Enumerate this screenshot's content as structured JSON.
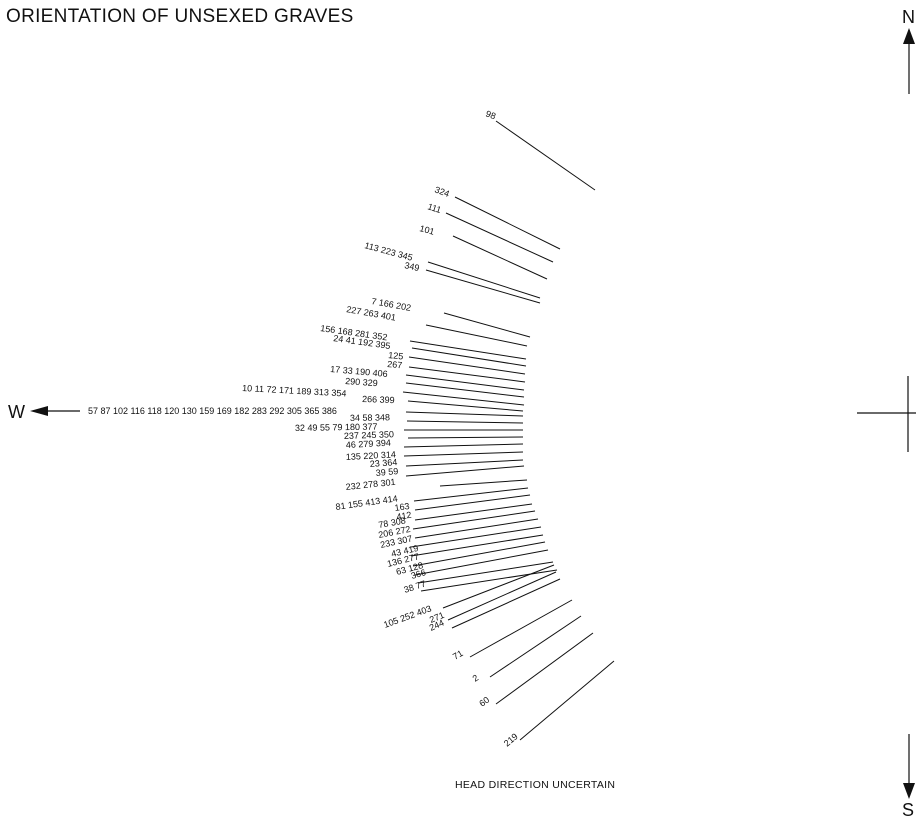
{
  "title": "ORIENTATION OF UNSEXED GRAVES",
  "caption": "HEAD DIRECTION UNCERTAIN",
  "compass": {
    "north": "N",
    "south": "S",
    "west": "W"
  },
  "graves": [
    {
      "label": "98"
    },
    {
      "label": "324"
    },
    {
      "label": "111"
    },
    {
      "label": "101"
    },
    {
      "label": "113 223 345"
    },
    {
      "label": "349"
    },
    {
      "label": "7 166 202"
    },
    {
      "label": "227 263 401"
    },
    {
      "label": "156 168 281 352"
    },
    {
      "label": "24 41 192 395"
    },
    {
      "label": "125"
    },
    {
      "label": "267"
    },
    {
      "label": "17 33 190 406"
    },
    {
      "label": "290 329"
    },
    {
      "label": "10 11 72 171 189 313 354"
    },
    {
      "label": "266 399"
    },
    {
      "label": "57 87 102 116 118 120 130 159 169 182 283 292 305 365 386"
    },
    {
      "label": "34 58 348"
    },
    {
      "label": "32 49 55 79 180 377"
    },
    {
      "label": "237 245 350"
    },
    {
      "label": "46 279 394"
    },
    {
      "label": "135 220 314"
    },
    {
      "label": "23 364"
    },
    {
      "label": "39 59"
    },
    {
      "label": "232 278 301"
    },
    {
      "label": "81 155 413 414"
    },
    {
      "label": "163"
    },
    {
      "label": "412"
    },
    {
      "label": "78 308"
    },
    {
      "label": "206 272"
    },
    {
      "label": "233 307"
    },
    {
      "label": "43 419"
    },
    {
      "label": "136 277"
    },
    {
      "label": "63 128"
    },
    {
      "label": "366"
    },
    {
      "label": "38 77"
    },
    {
      "label": "105 252 403"
    },
    {
      "label": "271"
    },
    {
      "label": "244"
    },
    {
      "label": "71"
    },
    {
      "label": "2"
    },
    {
      "label": "60"
    },
    {
      "label": "219"
    }
  ]
}
